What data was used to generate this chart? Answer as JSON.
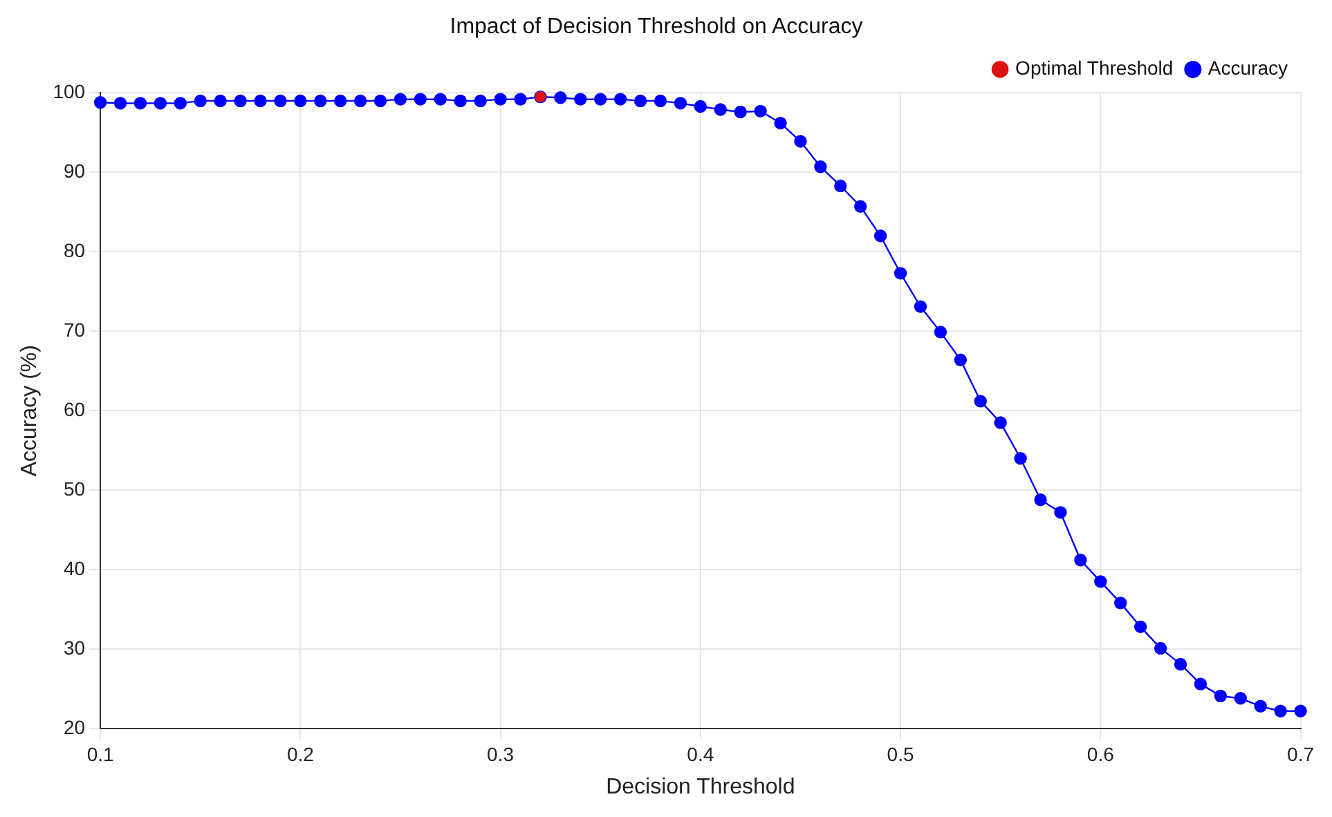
{
  "chart_data": {
    "type": "line",
    "title": "Impact of Decision Threshold on Accuracy",
    "xlabel": "Decision Threshold",
    "ylabel": "Accuracy (%)",
    "xlim": [
      0.1,
      0.7
    ],
    "xticks": [
      0.1,
      0.2,
      0.3,
      0.4,
      0.5,
      0.6,
      0.7
    ],
    "ylim": [
      20,
      100
    ],
    "yticks": [
      20,
      30,
      40,
      50,
      60,
      70,
      80,
      90,
      100
    ],
    "grid": true,
    "legend": "top right",
    "marker": "circle",
    "line_style": "solid",
    "series": [
      {
        "name": "Accuracy",
        "type": "line",
        "color": "#0000ff",
        "x": [
          0.1,
          0.11,
          0.12,
          0.13,
          0.14,
          0.15,
          0.16,
          0.17,
          0.18,
          0.19,
          0.2,
          0.21,
          0.22,
          0.23,
          0.24,
          0.25,
          0.26,
          0.27,
          0.28,
          0.29,
          0.3,
          0.31,
          0.32,
          0.33,
          0.34,
          0.35,
          0.36,
          0.37,
          0.38,
          0.39,
          0.4,
          0.41,
          0.42,
          0.43,
          0.44,
          0.45,
          0.46,
          0.47,
          0.48,
          0.49,
          0.5,
          0.51,
          0.52,
          0.53,
          0.54,
          0.55,
          0.56,
          0.57,
          0.58,
          0.59,
          0.6,
          0.61,
          0.62,
          0.63,
          0.64,
          0.65,
          0.66,
          0.67,
          0.68,
          0.69,
          0.7
        ],
        "values": [
          98.8,
          98.7,
          98.7,
          98.7,
          98.7,
          99.0,
          99.0,
          99.0,
          99.0,
          99.0,
          99.0,
          99.0,
          99.0,
          99.0,
          99.0,
          99.2,
          99.2,
          99.2,
          99.0,
          99.0,
          99.2,
          99.2,
          99.5,
          99.4,
          99.2,
          99.2,
          99.2,
          99.0,
          99.0,
          98.7,
          98.3,
          97.9,
          97.6,
          97.7,
          96.2,
          93.9,
          90.7,
          88.3,
          85.7,
          82.0,
          77.3,
          73.1,
          69.9,
          66.4,
          61.2,
          58.5,
          54.0,
          48.8,
          47.2,
          41.2,
          38.5,
          35.8,
          32.8,
          30.1,
          28.1,
          25.6,
          24.1,
          23.8,
          22.8,
          22.2,
          22.2
        ]
      },
      {
        "name": "Optimal Threshold",
        "type": "scatter",
        "color": "#dd1111",
        "x": [
          0.32
        ],
        "values": [
          99.5
        ]
      }
    ]
  }
}
